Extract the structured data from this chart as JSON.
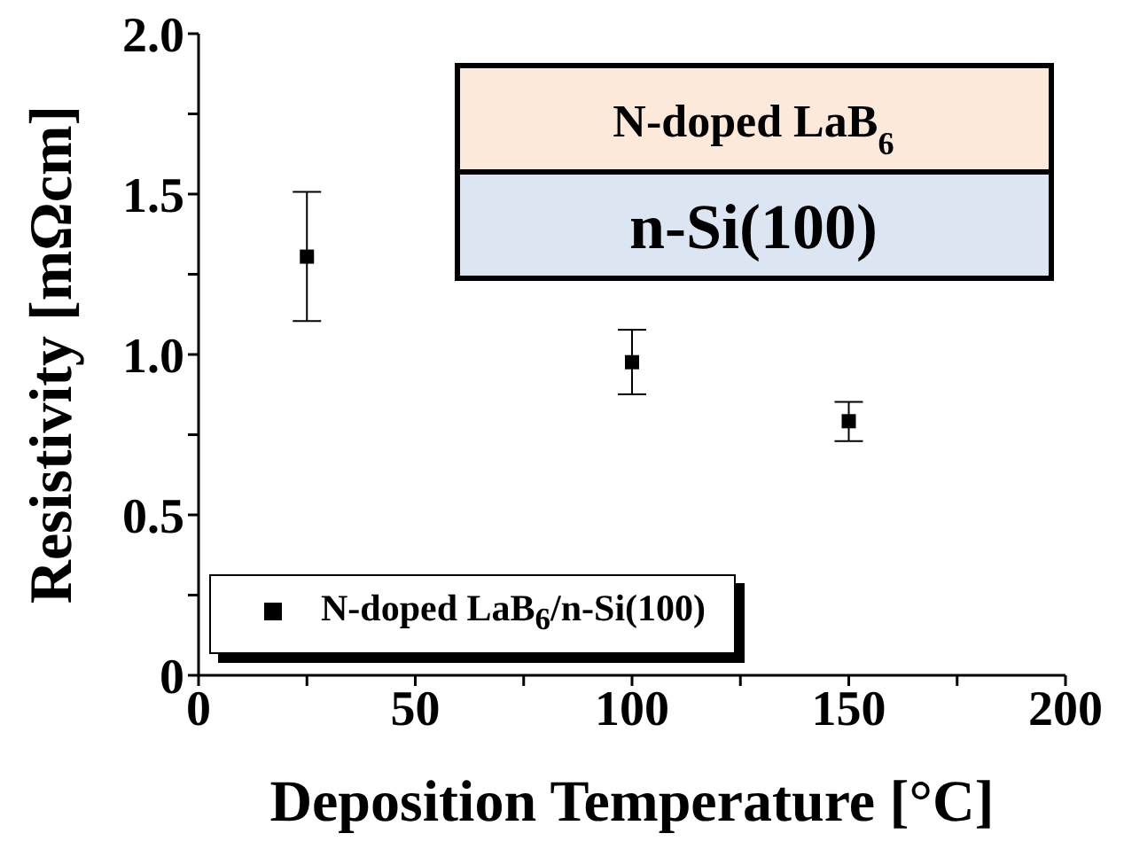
{
  "chart_data": {
    "type": "scatter",
    "xlabel": "Deposition Temperature [°C]",
    "ylabel": "Resistivity [mΩcm]",
    "x": [
      25,
      100,
      150
    ],
    "series": [
      {
        "name": "N-doped LaB$_{6}$/n-Si(100)",
        "color": "#000000",
        "values": [
          1.305,
          0.976,
          0.792
        ],
        "errors": [
          [
            1.104,
            1.507
          ],
          [
            0.876,
            1.077
          ],
          [
            0.73,
            0.852
          ]
        ]
      }
    ],
    "xlim": [
      0,
      200
    ],
    "xticks": [
      0,
      {
        "value": 25,
        "label": null
      },
      50,
      {
        "value": 75,
        "label": null
      },
      100,
      {
        "value": 125,
        "label": null
      },
      150,
      {
        "value": 175,
        "label": null
      },
      200
    ],
    "ylim": [
      0,
      2.0
    ],
    "yticks": [
      {
        "value": 0,
        "label": "0"
      },
      {
        "value": 0.25,
        "label": null
      },
      {
        "value": 0.5,
        "label": "0.5"
      },
      {
        "value": 0.75,
        "label": null
      },
      {
        "value": 1.0,
        "label": "1.0"
      },
      {
        "value": 1.25,
        "label": null
      },
      {
        "value": 1.5,
        "label": "1.5"
      },
      {
        "value": 1.75,
        "label": null
      },
      {
        "value": 2.0,
        "label": "2.0"
      }
    ],
    "annotations": [
      "N-doped LaB$_{6}$",
      "n-Si(100)"
    ],
    "marker": "square",
    "legend": "bottom left",
    "grid": false
  }
}
